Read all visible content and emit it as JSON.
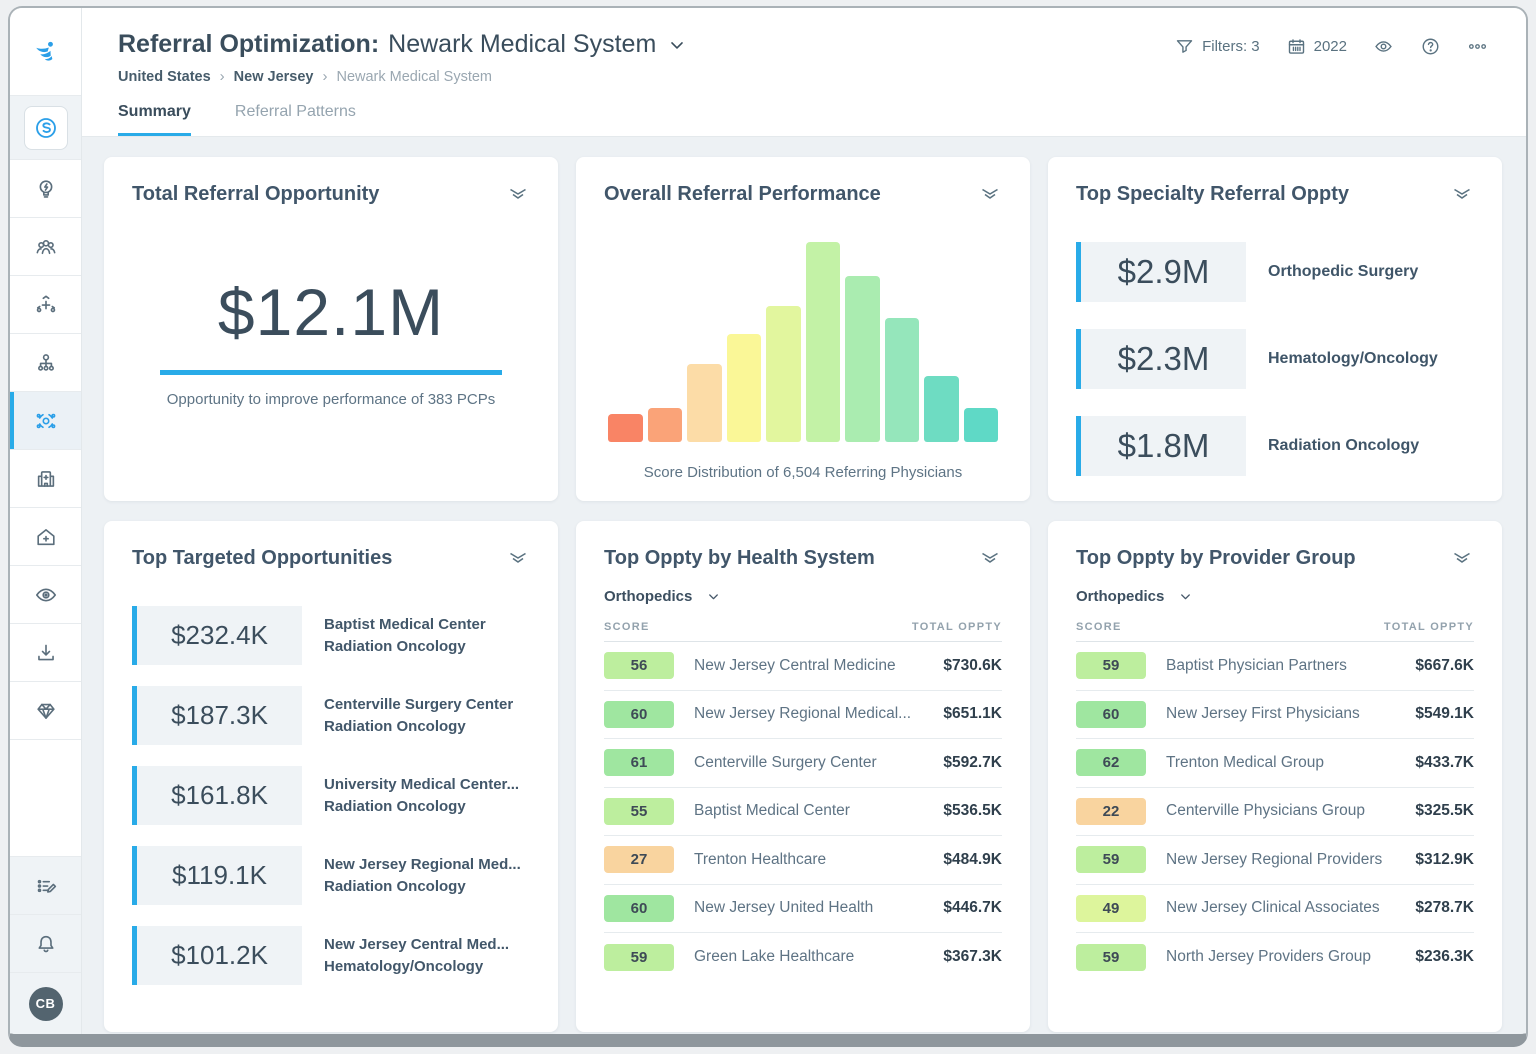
{
  "header": {
    "title_prefix": "Referral Optimization:",
    "title_entity": "Newark Medical System",
    "breadcrumb": [
      "United States",
      "New Jersey",
      "Newark Medical System"
    ],
    "breadcrumb_separator": "›",
    "filters_label": "Filters: 3",
    "year": "2022",
    "tabs": [
      {
        "label": "Summary",
        "active": true
      },
      {
        "label": "Referral Patterns",
        "active": false
      }
    ]
  },
  "sidebar": {
    "avatar_initials": "CB",
    "items": [
      {
        "icon": "lightbulb-icon",
        "active": false
      },
      {
        "icon": "people-icon",
        "active": false
      },
      {
        "icon": "network-add-icon",
        "active": false
      },
      {
        "icon": "org-chart-icon",
        "active": false
      },
      {
        "icon": "referral-hub-icon",
        "active": true
      },
      {
        "icon": "hospital-icon",
        "active": false
      },
      {
        "icon": "home-plus-icon",
        "active": false
      },
      {
        "icon": "eye-icon",
        "active": false
      },
      {
        "icon": "download-icon",
        "active": false
      },
      {
        "icon": "diamond-icon",
        "active": false
      }
    ],
    "bottom_items": [
      {
        "icon": "edit-list-icon"
      },
      {
        "icon": "bell-icon"
      }
    ]
  },
  "colors": {
    "accent_blue": "#29abe8",
    "logo_blue": "#2b9fe8",
    "score_badge": {
      "green": "#9fe6a0",
      "lightgreen": "#bdee9e",
      "yellowgreen": "#ddf59c",
      "orange": "#f9d49f"
    }
  },
  "cards": {
    "total_referral": {
      "title": "Total Referral Opportunity",
      "value": "$12.1M",
      "caption": "Opportunity to improve performance of 383 PCPs"
    },
    "overall_performance": {
      "title": "Overall Referral Performance",
      "caption": "Score Distribution of 6,504 Referring Physicians"
    },
    "top_specialty": {
      "title": "Top Specialty Referral Oppty",
      "items": [
        {
          "value": "$2.9M",
          "label": "Orthopedic Surgery"
        },
        {
          "value": "$2.3M",
          "label": "Hematology/Oncology"
        },
        {
          "value": "$1.8M",
          "label": "Radiation Oncology"
        }
      ]
    },
    "top_targeted": {
      "title": "Top Targeted Opportunities",
      "items": [
        {
          "value": "$232.4K",
          "line1": "Baptist Medical Center",
          "line2": "Radiation Oncology"
        },
        {
          "value": "$187.3K",
          "line1": "Centerville Surgery Center",
          "line2": "Radiation Oncology"
        },
        {
          "value": "$161.8K",
          "line1": "University Medical Center...",
          "line2": "Radiation Oncology"
        },
        {
          "value": "$119.1K",
          "line1": "New Jersey Regional Med...",
          "line2": "Radiation Oncology"
        },
        {
          "value": "$101.2K",
          "line1": "New Jersey Central Med...",
          "line2": "Hematology/Oncology"
        }
      ]
    },
    "top_health_system": {
      "title": "Top Oppty by Health System",
      "filter_value": "Orthopedics",
      "col_score": "SCORE",
      "col_total": "TOTAL OPPTY",
      "rows": [
        {
          "score": "56",
          "tone": "lightgreen",
          "name": "New Jersey Central Medicine",
          "value": "$730.6K"
        },
        {
          "score": "60",
          "tone": "green",
          "name": "New Jersey Regional Medical...",
          "value": "$651.1K"
        },
        {
          "score": "61",
          "tone": "green",
          "name": "Centerville Surgery Center",
          "value": "$592.7K"
        },
        {
          "score": "55",
          "tone": "lightgreen",
          "name": "Baptist Medical Center",
          "value": "$536.5K"
        },
        {
          "score": "27",
          "tone": "orange",
          "name": "Trenton Healthcare",
          "value": "$484.9K"
        },
        {
          "score": "60",
          "tone": "green",
          "name": "New Jersey United Health",
          "value": "$446.7K"
        },
        {
          "score": "59",
          "tone": "lightgreen",
          "name": "Green Lake Healthcare",
          "value": "$367.3K"
        }
      ]
    },
    "top_provider_group": {
      "title": "Top Oppty by Provider Group",
      "filter_value": "Orthopedics",
      "col_score": "SCORE",
      "col_total": "TOTAL OPPTY",
      "rows": [
        {
          "score": "59",
          "tone": "lightgreen",
          "name": "Baptist Physician Partners",
          "value": "$667.6K"
        },
        {
          "score": "60",
          "tone": "green",
          "name": "New Jersey First Physicians",
          "value": "$549.1K"
        },
        {
          "score": "62",
          "tone": "green",
          "name": "Trenton Medical Group",
          "value": "$433.7K"
        },
        {
          "score": "22",
          "tone": "orange",
          "name": "Centerville Physicians Group",
          "value": "$325.5K"
        },
        {
          "score": "59",
          "tone": "lightgreen",
          "name": "New Jersey Regional Providers",
          "value": "$312.9K"
        },
        {
          "score": "49",
          "tone": "yellowgreen",
          "name": "New Jersey Clinical Associates",
          "value": "$278.7K"
        },
        {
          "score": "59",
          "tone": "lightgreen",
          "name": "North Jersey Providers Group",
          "value": "$236.3K"
        }
      ]
    }
  },
  "chart_data": {
    "type": "bar",
    "title": "Overall Referral Performance",
    "subtitle": "Score Distribution of 6,504 Referring Physicians",
    "xlabel": "",
    "ylabel": "",
    "axes_visible": false,
    "bins": 10,
    "relative_heights_pct": [
      14,
      17,
      39,
      54,
      68,
      100,
      83,
      62,
      33,
      17
    ],
    "bar_colors": [
      "#f98465",
      "#faa378",
      "#fcdca7",
      "#faf797",
      "#e2f69e",
      "#c3f2a6",
      "#aaecb0",
      "#95e6bb",
      "#6edcc2",
      "#5fd9c6"
    ]
  }
}
